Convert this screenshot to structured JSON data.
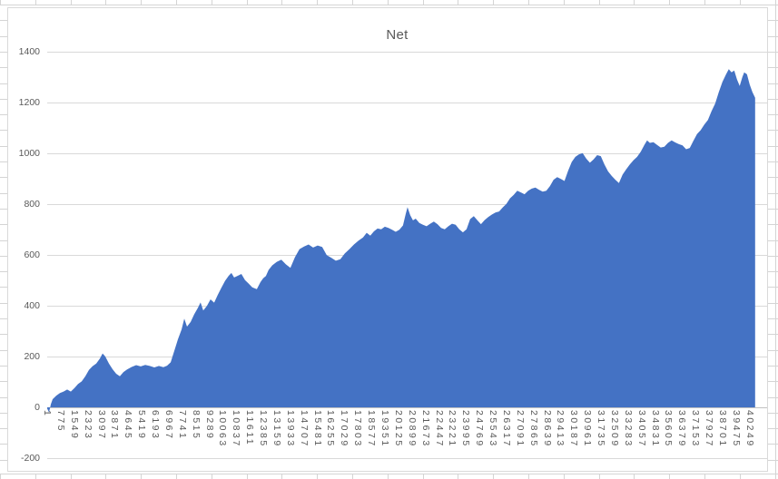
{
  "chart_data": {
    "type": "area",
    "title": "Net",
    "legend": "none",
    "grid": true,
    "baseline": 0,
    "x_axis": {
      "min": 1,
      "max": 41250,
      "tick_rotation_deg": 90,
      "tick_labels": [
        "1",
        "775",
        "1549",
        "2323",
        "3097",
        "3871",
        "4645",
        "5419",
        "6193",
        "6967",
        "7741",
        "8515",
        "9289",
        "10063",
        "10837",
        "11611",
        "12385",
        "13159",
        "13933",
        "14707",
        "15481",
        "16255",
        "17029",
        "17803",
        "18577",
        "19351",
        "20125",
        "20899",
        "21673",
        "22447",
        "23221",
        "23995",
        "24769",
        "25543",
        "26317",
        "27091",
        "27865",
        "28639",
        "29413",
        "30187",
        "30961",
        "31735",
        "32509",
        "33283",
        "34057",
        "34831",
        "35605",
        "36379",
        "37153",
        "37927",
        "38701",
        "39475",
        "40249"
      ]
    },
    "y_axis": {
      "min": -200,
      "max": 1400,
      "step": 200,
      "tick_labels": [
        "1400",
        "1200",
        "1000",
        "800",
        "600",
        "400",
        "200",
        "0",
        "-200"
      ]
    },
    "series": [
      {
        "name": "Net",
        "points": [
          [
            1,
            -5
          ],
          [
            105,
            -20
          ],
          [
            209,
            12
          ],
          [
            313,
            32
          ],
          [
            521,
            46
          ],
          [
            729,
            56
          ],
          [
            937,
            62
          ],
          [
            1145,
            70
          ],
          [
            1353,
            62
          ],
          [
            1561,
            76
          ],
          [
            1769,
            92
          ],
          [
            1977,
            102
          ],
          [
            2185,
            122
          ],
          [
            2393,
            147
          ],
          [
            2601,
            162
          ],
          [
            2809,
            172
          ],
          [
            3017,
            192
          ],
          [
            3173,
            212
          ],
          [
            3329,
            200
          ],
          [
            3537,
            172
          ],
          [
            3745,
            150
          ],
          [
            3953,
            132
          ],
          [
            4161,
            122
          ],
          [
            4369,
            139
          ],
          [
            4577,
            149
          ],
          [
            4837,
            159
          ],
          [
            5097,
            166
          ],
          [
            5357,
            161
          ],
          [
            5617,
            167
          ],
          [
            5877,
            163
          ],
          [
            6137,
            157
          ],
          [
            6397,
            163
          ],
          [
            6657,
            158
          ],
          [
            6865,
            164
          ],
          [
            7073,
            177
          ],
          [
            7281,
            222
          ],
          [
            7489,
            268
          ],
          [
            7697,
            306
          ],
          [
            7853,
            349
          ],
          [
            8009,
            318
          ],
          [
            8217,
            336
          ],
          [
            8425,
            366
          ],
          [
            8633,
            391
          ],
          [
            8789,
            413
          ],
          [
            8945,
            381
          ],
          [
            9153,
            399
          ],
          [
            9361,
            425
          ],
          [
            9569,
            412
          ],
          [
            9777,
            443
          ],
          [
            9985,
            471
          ],
          [
            10193,
            498
          ],
          [
            10401,
            518
          ],
          [
            10557,
            529
          ],
          [
            10713,
            511
          ],
          [
            10921,
            518
          ],
          [
            11129,
            525
          ],
          [
            11337,
            501
          ],
          [
            11545,
            487
          ],
          [
            11753,
            472
          ],
          [
            12013,
            465
          ],
          [
            12221,
            493
          ],
          [
            12377,
            508
          ],
          [
            12533,
            517
          ],
          [
            12689,
            541
          ],
          [
            12897,
            559
          ],
          [
            13157,
            573
          ],
          [
            13417,
            581
          ],
          [
            13677,
            563
          ],
          [
            13937,
            549
          ],
          [
            14197,
            591
          ],
          [
            14457,
            623
          ],
          [
            14717,
            633
          ],
          [
            14977,
            641
          ],
          [
            15237,
            629
          ],
          [
            15497,
            637
          ],
          [
            15757,
            631
          ],
          [
            16017,
            599
          ],
          [
            16277,
            589
          ],
          [
            16537,
            577
          ],
          [
            16797,
            583
          ],
          [
            17057,
            606
          ],
          [
            17317,
            623
          ],
          [
            17577,
            641
          ],
          [
            17837,
            656
          ],
          [
            18097,
            669
          ],
          [
            18305,
            687
          ],
          [
            18513,
            676
          ],
          [
            18721,
            693
          ],
          [
            18929,
            704
          ],
          [
            19137,
            701
          ],
          [
            19345,
            711
          ],
          [
            19553,
            706
          ],
          [
            19761,
            699
          ],
          [
            19969,
            691
          ],
          [
            20177,
            699
          ],
          [
            20385,
            716
          ],
          [
            20541,
            761
          ],
          [
            20645,
            788
          ],
          [
            20801,
            756
          ],
          [
            20957,
            736
          ],
          [
            21113,
            743
          ],
          [
            21321,
            726
          ],
          [
            21529,
            719
          ],
          [
            21737,
            713
          ],
          [
            21945,
            723
          ],
          [
            22153,
            731
          ],
          [
            22361,
            721
          ],
          [
            22569,
            706
          ],
          [
            22777,
            701
          ],
          [
            22985,
            713
          ],
          [
            23193,
            723
          ],
          [
            23401,
            719
          ],
          [
            23609,
            701
          ],
          [
            23817,
            689
          ],
          [
            24025,
            701
          ],
          [
            24233,
            741
          ],
          [
            24441,
            753
          ],
          [
            24649,
            736
          ],
          [
            24857,
            721
          ],
          [
            25065,
            737
          ],
          [
            25273,
            749
          ],
          [
            25481,
            759
          ],
          [
            25689,
            767
          ],
          [
            25897,
            771
          ],
          [
            26105,
            787
          ],
          [
            26313,
            801
          ],
          [
            26521,
            823
          ],
          [
            26729,
            836
          ],
          [
            26937,
            853
          ],
          [
            27145,
            846
          ],
          [
            27353,
            839
          ],
          [
            27561,
            853
          ],
          [
            27769,
            861
          ],
          [
            27977,
            865
          ],
          [
            28185,
            856
          ],
          [
            28393,
            849
          ],
          [
            28601,
            853
          ],
          [
            28809,
            871
          ],
          [
            29017,
            896
          ],
          [
            29225,
            906
          ],
          [
            29433,
            899
          ],
          [
            29641,
            891
          ],
          [
            29849,
            931
          ],
          [
            30057,
            966
          ],
          [
            30265,
            986
          ],
          [
            30473,
            996
          ],
          [
            30681,
            1001
          ],
          [
            30889,
            979
          ],
          [
            31097,
            963
          ],
          [
            31305,
            976
          ],
          [
            31513,
            993
          ],
          [
            31721,
            989
          ],
          [
            31929,
            956
          ],
          [
            32137,
            929
          ],
          [
            32345,
            911
          ],
          [
            32553,
            896
          ],
          [
            32761,
            883
          ],
          [
            32969,
            916
          ],
          [
            33177,
            937
          ],
          [
            33385,
            956
          ],
          [
            33593,
            973
          ],
          [
            33801,
            986
          ],
          [
            34009,
            1006
          ],
          [
            34217,
            1033
          ],
          [
            34373,
            1051
          ],
          [
            34529,
            1041
          ],
          [
            34737,
            1044
          ],
          [
            34945,
            1033
          ],
          [
            35153,
            1023
          ],
          [
            35361,
            1026
          ],
          [
            35569,
            1041
          ],
          [
            35777,
            1051
          ],
          [
            35985,
            1043
          ],
          [
            36193,
            1036
          ],
          [
            36401,
            1031
          ],
          [
            36609,
            1016
          ],
          [
            36817,
            1021
          ],
          [
            37025,
            1049
          ],
          [
            37233,
            1076
          ],
          [
            37441,
            1091
          ],
          [
            37649,
            1113
          ],
          [
            37857,
            1131
          ],
          [
            38065,
            1166
          ],
          [
            38273,
            1196
          ],
          [
            38481,
            1241
          ],
          [
            38689,
            1281
          ],
          [
            38897,
            1311
          ],
          [
            39053,
            1331
          ],
          [
            39209,
            1319
          ],
          [
            39365,
            1326
          ],
          [
            39521,
            1291
          ],
          [
            39677,
            1265
          ],
          [
            39833,
            1301
          ],
          [
            39937,
            1319
          ],
          [
            40093,
            1311
          ],
          [
            40249,
            1271
          ],
          [
            40405,
            1241
          ],
          [
            40561,
            1219
          ]
        ]
      }
    ],
    "colors": {
      "area_fill": "#4472c4",
      "gridline": "#d9d9d9",
      "zero_axis_line": "#c0c0c0",
      "text": "#595959",
      "chart_border": "#d9d9d9",
      "sheet_gridline": "#d4d4d4"
    }
  }
}
